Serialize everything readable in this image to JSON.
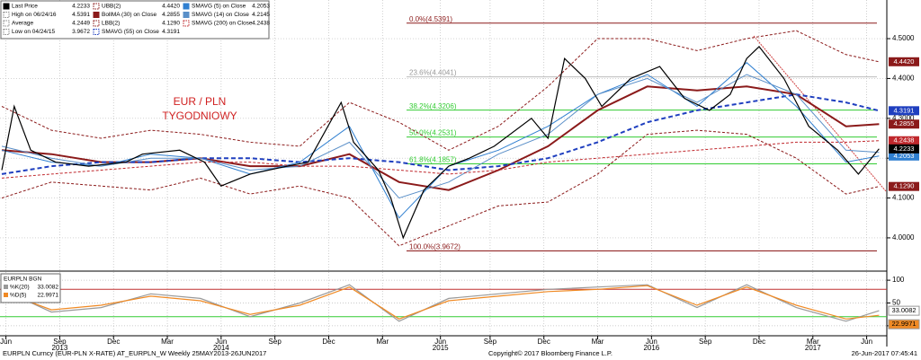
{
  "chart_data": {
    "type": "line",
    "annotation": [
      "EUR / PLN",
      "TYGODNIOWY"
    ],
    "xlim": [
      0,
      213
    ],
    "ylim": [
      3.921,
      4.597
    ],
    "grid": true,
    "xticks": [
      {
        "value": 1,
        "label": "Jun"
      },
      {
        "value": 14,
        "label": "Sep"
      },
      {
        "value": 27,
        "label": "Dec"
      },
      {
        "value": 40,
        "label": "Mar"
      },
      {
        "value": 53,
        "label": "Jun"
      },
      {
        "value": 66,
        "label": "Sep"
      },
      {
        "value": 79,
        "label": "Dec"
      },
      {
        "value": 92,
        "label": "Mar"
      },
      {
        "value": 106,
        "label": "Jun"
      },
      {
        "value": 118,
        "label": "Sep"
      },
      {
        "value": 131,
        "label": "Dec"
      },
      {
        "value": 144,
        "label": "Mar"
      },
      {
        "value": 157,
        "label": "Jun"
      },
      {
        "value": 170,
        "label": "Sep"
      },
      {
        "value": 183,
        "label": "Dec"
      },
      {
        "value": 196,
        "label": "Mar"
      },
      {
        "value": 209,
        "label": "Jun"
      }
    ],
    "year_ticks": [
      {
        "value": 14,
        "label": "2013"
      },
      {
        "value": 53,
        "label": "2014"
      },
      {
        "value": 106,
        "label": "2015"
      },
      {
        "value": 157,
        "label": "2016"
      },
      {
        "value": 196,
        "label": "2017"
      }
    ],
    "yticks": [
      {
        "value": 4.5,
        "label": "4.5000"
      },
      {
        "value": 4.4,
        "label": "4.4000"
      },
      {
        "value": 4.3,
        "label": "4.3000"
      },
      {
        "value": 4.2,
        "label": "4.2000"
      },
      {
        "value": 4.1,
        "label": "4.1000"
      },
      {
        "value": 4.0,
        "label": "4.0000"
      }
    ],
    "price": {
      "name": "Last Price",
      "color": "#000000",
      "last_label": "4.2233",
      "x": [
        0,
        3,
        7,
        13,
        21,
        30,
        34,
        43,
        49,
        53,
        60,
        69,
        74,
        82,
        85,
        91,
        94,
        97,
        102,
        108,
        113,
        119,
        128,
        132,
        136,
        141,
        145,
        152,
        159,
        165,
        171,
        176,
        180,
        183,
        189,
        195,
        202,
        207,
        212
      ],
      "values": [
        4.17,
        4.33,
        4.22,
        4.19,
        4.18,
        4.19,
        4.21,
        4.22,
        4.19,
        4.13,
        4.16,
        4.18,
        4.19,
        4.34,
        4.24,
        4.17,
        4.1,
        4.0,
        4.12,
        4.18,
        4.2,
        4.23,
        4.3,
        4.25,
        4.45,
        4.4,
        4.33,
        4.4,
        4.43,
        4.35,
        4.32,
        4.36,
        4.45,
        4.48,
        4.4,
        4.28,
        4.22,
        4.16,
        4.2233
      ]
    },
    "stats": [
      {
        "name": "High on 06/24/16",
        "value": "4.5391"
      },
      {
        "name": "Average",
        "value": "4.2449"
      },
      {
        "name": "Low on 04/24/15",
        "value": "3.9672"
      }
    ],
    "overlay_x": [
      0,
      12,
      24,
      36,
      48,
      60,
      72,
      84,
      96,
      108,
      120,
      132,
      144,
      156,
      168,
      180,
      192,
      204,
      212
    ],
    "series": [
      {
        "name": "UBB(2)",
        "color": "#8b1a1a",
        "dash": true,
        "last_label": "4.4420",
        "values": [
          4.33,
          4.27,
          4.25,
          4.27,
          4.26,
          4.24,
          4.23,
          4.34,
          4.29,
          4.22,
          4.28,
          4.38,
          4.5,
          4.5,
          4.47,
          4.5,
          4.52,
          4.46,
          4.442
        ]
      },
      {
        "name": "BollMA (30) on Close",
        "color": "#8b1a1a",
        "dash": false,
        "last_label": "4.2855",
        "values": [
          4.22,
          4.21,
          4.19,
          4.19,
          4.2,
          4.18,
          4.18,
          4.21,
          4.14,
          4.12,
          4.17,
          4.23,
          4.32,
          4.38,
          4.37,
          4.38,
          4.36,
          4.28,
          4.2855
        ]
      },
      {
        "name": "LBB(2)",
        "color": "#8b1a1a",
        "dash": true,
        "last_label": "4.1290",
        "values": [
          4.1,
          4.14,
          4.13,
          4.12,
          4.15,
          4.11,
          4.13,
          4.1,
          3.98,
          4.03,
          4.08,
          4.09,
          4.16,
          4.26,
          4.27,
          4.26,
          4.2,
          4.11,
          4.129
        ]
      },
      {
        "name": "SMAVG (55) on Close",
        "color": "#1f3fbf",
        "dash": true,
        "last_label": "4.3191",
        "values": [
          4.16,
          4.18,
          4.19,
          4.19,
          4.2,
          4.2,
          4.19,
          4.2,
          4.19,
          4.17,
          4.18,
          4.2,
          4.24,
          4.29,
          4.32,
          4.34,
          4.36,
          4.34,
          4.3191
        ]
      },
      {
        "name": "SMAVG (5) on Close",
        "color": "#2f7fd0",
        "dash": false,
        "last_label": "4.2053",
        "values": [
          4.22,
          4.19,
          4.18,
          4.21,
          4.2,
          4.16,
          4.19,
          4.28,
          4.05,
          4.18,
          4.22,
          4.28,
          4.36,
          4.41,
          4.33,
          4.44,
          4.33,
          4.19,
          4.2053
        ]
      },
      {
        "name": "SMAVG (14) on Close",
        "color": "#5a8fc8",
        "dash": false,
        "last_label": "4.2145",
        "values": [
          4.23,
          4.2,
          4.18,
          4.2,
          4.2,
          4.17,
          4.18,
          4.24,
          4.1,
          4.14,
          4.21,
          4.26,
          4.36,
          4.4,
          4.34,
          4.41,
          4.36,
          4.22,
          4.2145
        ]
      },
      {
        "name": "SMAVG (200) on Close",
        "color": "#c0282d",
        "dash": true,
        "last_label": "4.2438",
        "values": [
          4.15,
          4.16,
          4.17,
          4.18,
          4.19,
          4.19,
          4.18,
          4.18,
          4.17,
          4.16,
          4.17,
          4.19,
          4.2,
          4.21,
          4.22,
          4.23,
          4.24,
          4.24,
          4.2438
        ]
      }
    ],
    "fibonacci": [
      {
        "label": "0.0%(4.5391)",
        "value": 4.5391,
        "color": "#8b1a1a"
      },
      {
        "label": "23.6%(4.4041)",
        "value": 4.4041,
        "color": "#bbbbbb"
      },
      {
        "label": "38.2%(4.3206)",
        "value": 4.3206,
        "color": "#33cc33"
      },
      {
        "label": "50.0%(4.2531)",
        "value": 4.2531,
        "color": "#33cc33"
      },
      {
        "label": "61.8%(4.1857)",
        "value": 4.1857,
        "color": "#33cc33"
      },
      {
        "label": "100.0%(3.9672)",
        "value": 3.9672,
        "color": "#8b1a1a"
      }
    ],
    "lower": {
      "title": "EURPLN BGN",
      "ylim": [
        -18,
        116
      ],
      "yticks": [
        100,
        50,
        0
      ],
      "levels": [
        80,
        20
      ],
      "series": [
        {
          "name": "%K(20)",
          "color": "#999999",
          "last_label": "33.0082",
          "values": [
            80,
            30,
            40,
            70,
            60,
            20,
            50,
            90,
            10,
            60,
            70,
            80,
            85,
            90,
            40,
            90,
            40,
            10,
            33.0082
          ]
        },
        {
          "name": "%D(5)",
          "color": "#f08a24",
          "last_label": "22.9971",
          "values": [
            75,
            35,
            45,
            65,
            55,
            25,
            45,
            85,
            15,
            55,
            65,
            75,
            80,
            88,
            45,
            85,
            45,
            15,
            22.9971
          ]
        }
      ]
    },
    "footer": {
      "left": "EURPLN Curncy (EUR-PLN X-RATE) AT_EURPLN_W  Weekly 25MAY2013-26JUN2017",
      "center": "Copyright© 2017 Bloomberg Finance L.P.",
      "right": "26-Jun-2017 07:45:41"
    }
  }
}
